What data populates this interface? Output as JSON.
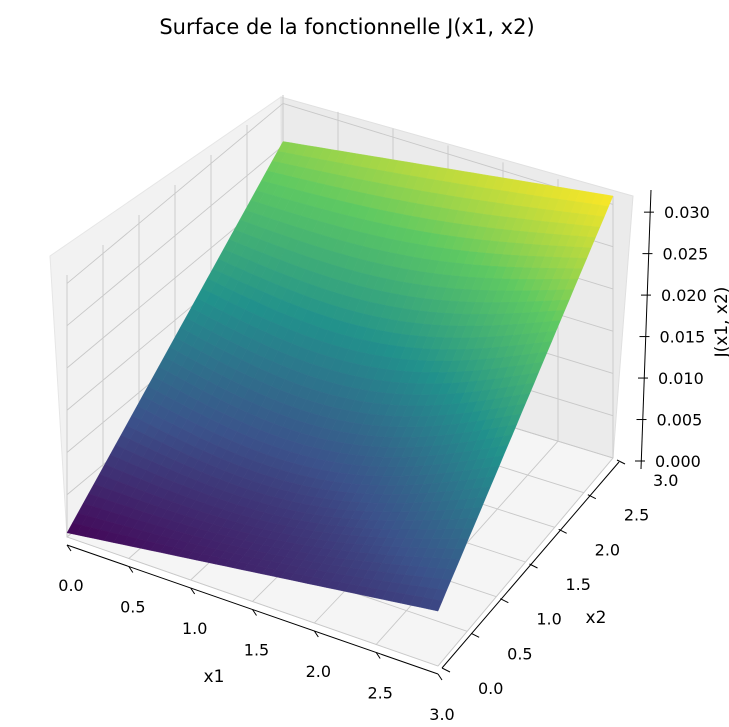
{
  "chart_data": {
    "type": "surface",
    "title": "Surface de la fonctionnelle J(x1, x2)",
    "xlabel": "x1",
    "ylabel": "x2",
    "zlabel": "J(x1, x2)",
    "xlim": [
      0.0,
      3.0
    ],
    "ylim": [
      0.0,
      3.0
    ],
    "zlim": [
      0.0,
      0.031
    ],
    "x_ticks": [
      "0.0",
      "0.5",
      "1.0",
      "1.5",
      "2.0",
      "2.5",
      "3.0"
    ],
    "y_ticks": [
      "0.0",
      "0.5",
      "1.0",
      "1.5",
      "2.0",
      "2.5",
      "3.0"
    ],
    "z_ticks": [
      "0.000",
      "0.005",
      "0.010",
      "0.015",
      "0.020",
      "0.025",
      "0.030"
    ],
    "colormap": [
      "#440154",
      "#3b528b",
      "#21918c",
      "#5ec962",
      "#fde725"
    ],
    "grid": true,
    "corner_values": [
      {
        "x1": 0.0,
        "x2": 0.0,
        "J": 0.0005
      },
      {
        "x1": 3.0,
        "x2": 0.0,
        "J": 0.0065
      },
      {
        "x1": 0.0,
        "x2": 3.0,
        "J": 0.0255
      },
      {
        "x1": 3.0,
        "x2": 3.0,
        "J": 0.031
      }
    ]
  }
}
